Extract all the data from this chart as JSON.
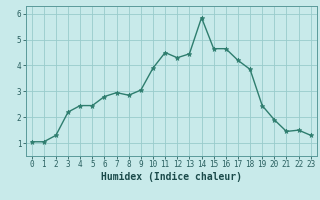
{
  "x": [
    0,
    1,
    2,
    3,
    4,
    5,
    6,
    7,
    8,
    9,
    10,
    11,
    12,
    13,
    14,
    15,
    16,
    17,
    18,
    19,
    20,
    21,
    22,
    23
  ],
  "y": [
    1.05,
    1.05,
    1.3,
    2.2,
    2.45,
    2.45,
    2.8,
    2.95,
    2.85,
    3.05,
    3.9,
    4.5,
    4.3,
    4.45,
    5.85,
    4.65,
    4.65,
    4.2,
    3.85,
    2.45,
    1.9,
    1.45,
    1.5,
    1.3
  ],
  "line_color": "#2e7d6e",
  "marker": "*",
  "background_color": "#c8eaea",
  "grid_color": "#99cccc",
  "xlabel": "Humidex (Indice chaleur)",
  "xlim": [
    -0.5,
    23.5
  ],
  "ylim": [
    0.5,
    6.3
  ],
  "yticks": [
    1,
    2,
    3,
    4,
    5,
    6
  ],
  "xticks": [
    0,
    1,
    2,
    3,
    4,
    5,
    6,
    7,
    8,
    9,
    10,
    11,
    12,
    13,
    14,
    15,
    16,
    17,
    18,
    19,
    20,
    21,
    22,
    23
  ],
  "xlabel_fontsize": 7,
  "tick_fontsize": 5.5,
  "line_width": 1.0,
  "marker_size": 3.5
}
